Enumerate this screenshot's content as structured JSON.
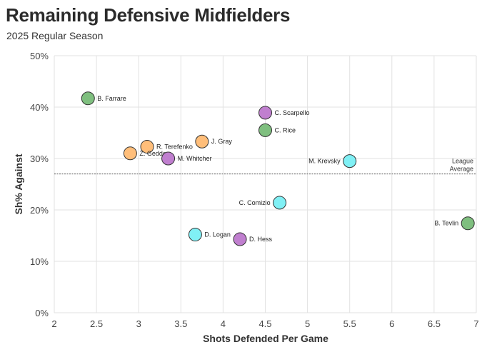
{
  "title": "Remaining Defensive Midfielders",
  "subtitle": "2025 Regular Season",
  "chart_data": {
    "type": "scatter",
    "xlabel": "Shots Defended Per Game",
    "ylabel": "Sh% Against",
    "xlim": [
      2,
      7
    ],
    "ylim": [
      0,
      50
    ],
    "x_ticks": [
      "2",
      "2.5",
      "3",
      "3.5",
      "4",
      "4.5",
      "5",
      "5.5",
      "6",
      "6.5",
      "7"
    ],
    "y_ticks": [
      "0%",
      "10%",
      "20%",
      "30%",
      "40%",
      "50%"
    ],
    "grid": true,
    "reference_line": {
      "y": 27,
      "label_line1": "League",
      "label_line2": "Average"
    },
    "colors": {
      "green": "#7fbf7f",
      "purple": "#c07fcf",
      "orange": "#ffbe7a",
      "cyan": "#80f0f5"
    },
    "points": [
      {
        "name": "B. Farrare",
        "x": 2.4,
        "y": 41.7,
        "color": "green",
        "label_side": "right"
      },
      {
        "name": "C. Scarpello",
        "x": 4.5,
        "y": 38.9,
        "color": "purple",
        "label_side": "right"
      },
      {
        "name": "C. Rice",
        "x": 4.5,
        "y": 35.5,
        "color": "green",
        "label_side": "right"
      },
      {
        "name": "J. Gray",
        "x": 3.75,
        "y": 33.3,
        "color": "orange",
        "label_side": "right"
      },
      {
        "name": "R. Terefenko",
        "x": 3.1,
        "y": 32.3,
        "color": "orange",
        "label_side": "right"
      },
      {
        "name": "Z. Geddes",
        "x": 2.9,
        "y": 31.0,
        "color": "orange",
        "label_side": "right"
      },
      {
        "name": "M. Whitcher",
        "x": 3.35,
        "y": 30.0,
        "color": "purple",
        "label_side": "right"
      },
      {
        "name": "M. Krevsky",
        "x": 5.5,
        "y": 29.5,
        "color": "cyan",
        "label_side": "left"
      },
      {
        "name": "C. Comizio",
        "x": 4.67,
        "y": 21.4,
        "color": "cyan",
        "label_side": "left"
      },
      {
        "name": "B. Tevlin",
        "x": 6.9,
        "y": 17.4,
        "color": "green",
        "label_side": "left"
      },
      {
        "name": "D. Logan",
        "x": 3.67,
        "y": 15.2,
        "color": "cyan",
        "label_side": "right"
      },
      {
        "name": "D. Hess",
        "x": 4.2,
        "y": 14.3,
        "color": "purple",
        "label_side": "right"
      }
    ]
  }
}
